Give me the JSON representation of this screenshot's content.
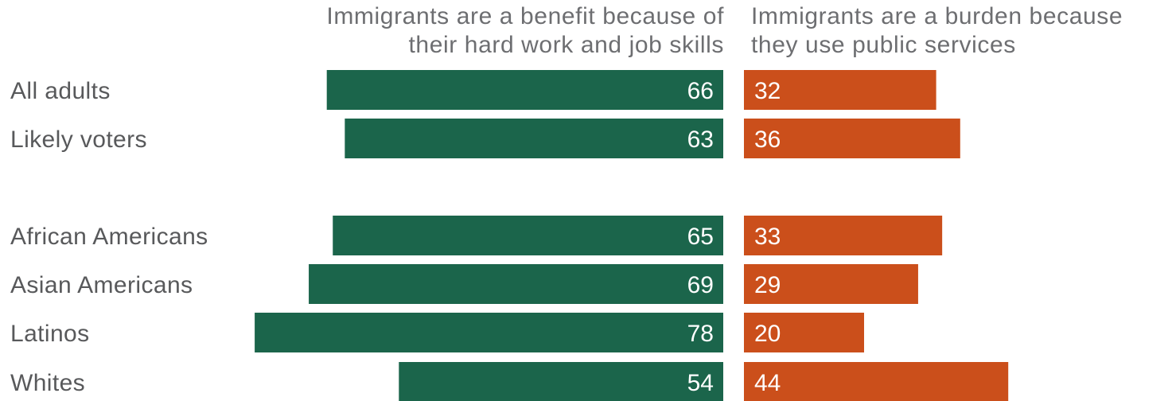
{
  "chart_data": {
    "type": "bar",
    "orientation": "horizontal-diverging",
    "categories": [
      "All adults",
      "Likely voters",
      "African Americans",
      "Asian Americans",
      "Latinos",
      "Whites"
    ],
    "series": [
      {
        "name": "Immigrants are a benefit because of their hard work and job skills",
        "header_lines": [
          "Immigrants are a benefit because of",
          "their hard work and job skills"
        ],
        "color": "#1b654b",
        "values": [
          66,
          63,
          65,
          69,
          78,
          54
        ]
      },
      {
        "name": "Immigrants are a burden because they use public services",
        "header_lines": [
          "Immigrants are a burden because",
          "they use public services"
        ],
        "color": "#cb4f1b",
        "values": [
          32,
          36,
          33,
          29,
          20,
          44
        ]
      }
    ],
    "unit": "percent",
    "gridlines": false,
    "legend": "column headers above bars"
  }
}
